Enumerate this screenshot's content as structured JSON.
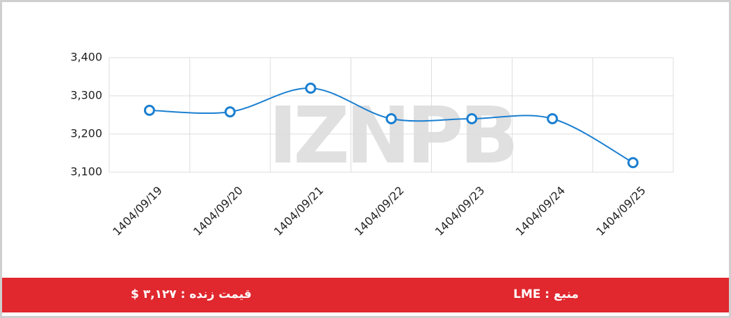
{
  "chart_data": {
    "type": "line",
    "categories": [
      "1404/09/19",
      "1404/09/20",
      "1404/09/21",
      "1404/09/22",
      "1404/09/23",
      "1404/09/24",
      "1404/09/25"
    ],
    "series": [
      {
        "name": "price",
        "color": "#1a7fd1",
        "values": [
          3262,
          3258,
          3320,
          3240,
          3240,
          3240,
          3125
        ]
      }
    ],
    "ylim": [
      3100,
      3400
    ],
    "yticks": [
      {
        "value": 3100,
        "label": "3,100"
      },
      {
        "value": 3200,
        "label": "3,200"
      },
      {
        "value": 3300,
        "label": "3,300"
      },
      {
        "value": 3400,
        "label": "3,400"
      }
    ],
    "grid": true,
    "watermark": "IZNPB"
  },
  "footer": {
    "price": "قیمت زنده : ۳,۱۲۷ $",
    "source": "منبع : LME"
  }
}
